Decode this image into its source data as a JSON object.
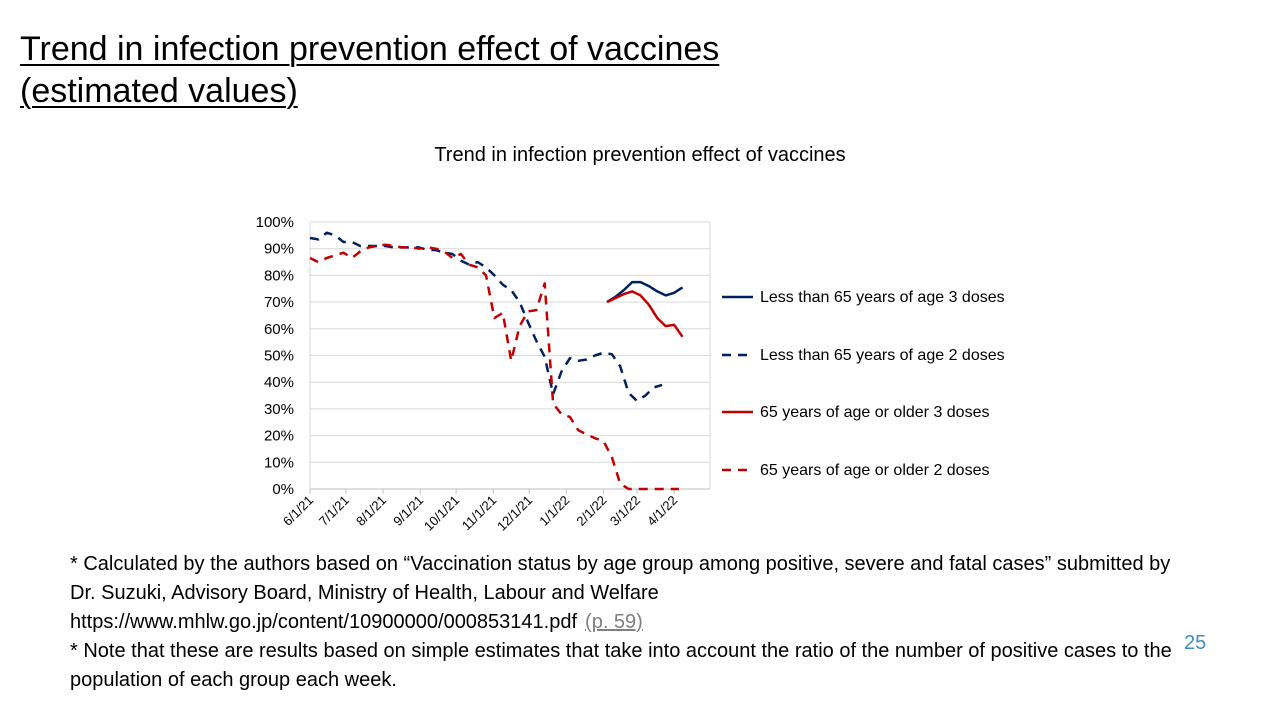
{
  "slide": {
    "title_line1": "Trend in infection prevention effect of vaccines",
    "title_line2": "(estimated values)",
    "page_number": "25"
  },
  "notes": {
    "line1": "* Calculated by the authors based on “Vaccination status by age group among positive, severe and fatal cases” submitted by Dr. Suzuki, Advisory Board, Ministry of Health, Labour and Welfare",
    "url": "https://www.mhlw.go.jp/content/10900000/000853141.pdf",
    "page_ref": "(p. 59)",
    "line2": "* Note that these are results based on simple estimates that take into account the ratio of the number of positive cases to the population of each group each week."
  },
  "chart_data": {
    "type": "line",
    "title": "Trend in infection prevention effect of vaccines",
    "xlabel": "",
    "ylabel": "",
    "ylim": [
      0,
      1
    ],
    "y_ticks": [
      "0%",
      "10%",
      "20%",
      "30%",
      "40%",
      "50%",
      "60%",
      "70%",
      "80%",
      "90%",
      "100%"
    ],
    "x_ticks": [
      "6/1/21",
      "7/1/21",
      "8/1/21",
      "9/1/21",
      "10/1/21",
      "11/1/21",
      "12/1/21",
      "1/1/22",
      "2/1/22",
      "3/1/22",
      "4/1/22"
    ],
    "grid": "horizontal",
    "legend_position": "right",
    "series": [
      {
        "name": "Less than 65 years of age 3 doses",
        "color": "#002060",
        "dash": "solid",
        "points": [
          [
            "2/4/22",
            0.7
          ],
          [
            "2/11/22",
            0.72
          ],
          [
            "2/18/22",
            0.745
          ],
          [
            "2/25/22",
            0.775
          ],
          [
            "3/4/22",
            0.775
          ],
          [
            "3/11/22",
            0.76
          ],
          [
            "3/18/22",
            0.74
          ],
          [
            "3/25/22",
            0.725
          ],
          [
            "4/1/22",
            0.735
          ],
          [
            "4/8/22",
            0.755
          ]
        ]
      },
      {
        "name": "Less than 65 years of age 2 doses",
        "color": "#002060",
        "dash": "dashed",
        "points": [
          [
            "6/1/21",
            0.94
          ],
          [
            "6/8/21",
            0.935
          ],
          [
            "6/15/21",
            0.96
          ],
          [
            "6/22/21",
            0.95
          ],
          [
            "6/29/21",
            0.925
          ],
          [
            "7/6/21",
            0.925
          ],
          [
            "7/13/21",
            0.91
          ],
          [
            "7/20/21",
            0.91
          ],
          [
            "7/27/21",
            0.91
          ],
          [
            "8/3/21",
            0.91
          ],
          [
            "8/10/21",
            0.905
          ],
          [
            "8/17/21",
            0.905
          ],
          [
            "8/24/21",
            0.905
          ],
          [
            "8/31/21",
            0.905
          ],
          [
            "9/7/21",
            0.895
          ],
          [
            "9/14/21",
            0.895
          ],
          [
            "9/21/21",
            0.885
          ],
          [
            "9/28/21",
            0.88
          ],
          [
            "10/5/21",
            0.855
          ],
          [
            "10/12/21",
            0.84
          ],
          [
            "10/19/21",
            0.85
          ],
          [
            "10/26/21",
            0.83
          ],
          [
            "11/2/21",
            0.8
          ],
          [
            "11/9/21",
            0.765
          ],
          [
            "11/16/21",
            0.745
          ],
          [
            "11/23/21",
            0.7
          ],
          [
            "11/30/21",
            0.625
          ],
          [
            "12/7/21",
            0.555
          ],
          [
            "12/14/21",
            0.495
          ],
          [
            "12/21/21",
            0.355
          ],
          [
            "12/28/21",
            0.44
          ],
          [
            "1/4/22",
            0.49
          ],
          [
            "1/11/22",
            0.48
          ],
          [
            "1/18/22",
            0.485
          ],
          [
            "1/25/22",
            0.5
          ],
          [
            "2/1/22",
            0.51
          ],
          [
            "2/8/22",
            0.505
          ],
          [
            "2/15/22",
            0.46
          ],
          [
            "2/22/22",
            0.36
          ],
          [
            "3/1/22",
            0.33
          ],
          [
            "3/8/22",
            0.35
          ],
          [
            "3/15/22",
            0.38
          ],
          [
            "3/22/22",
            0.39
          ]
        ]
      },
      {
        "name": "65 years of age or older 3 doses",
        "color": "#c00000",
        "dash": "solid",
        "points": [
          [
            "2/4/22",
            0.7
          ],
          [
            "2/11/22",
            0.715
          ],
          [
            "2/18/22",
            0.73
          ],
          [
            "2/25/22",
            0.74
          ],
          [
            "3/4/22",
            0.725
          ],
          [
            "3/11/22",
            0.69
          ],
          [
            "3/18/22",
            0.64
          ],
          [
            "3/25/22",
            0.61
          ],
          [
            "4/1/22",
            0.615
          ],
          [
            "4/8/22",
            0.57
          ]
        ]
      },
      {
        "name": "65 years of age or older 2 doses",
        "color": "#c00000",
        "dash": "dashed",
        "points": [
          [
            "6/1/21",
            0.865
          ],
          [
            "6/8/21",
            0.85
          ],
          [
            "6/15/21",
            0.865
          ],
          [
            "6/22/21",
            0.875
          ],
          [
            "6/29/21",
            0.885
          ],
          [
            "7/6/21",
            0.865
          ],
          [
            "7/13/21",
            0.89
          ],
          [
            "7/20/21",
            0.905
          ],
          [
            "7/27/21",
            0.91
          ],
          [
            "8/3/21",
            0.915
          ],
          [
            "8/10/21",
            0.91
          ],
          [
            "8/17/21",
            0.905
          ],
          [
            "8/24/21",
            0.905
          ],
          [
            "8/31/21",
            0.9
          ],
          [
            "9/7/21",
            0.905
          ],
          [
            "9/14/21",
            0.9
          ],
          [
            "9/21/21",
            0.89
          ],
          [
            "9/28/21",
            0.865
          ],
          [
            "10/5/21",
            0.88
          ],
          [
            "10/12/21",
            0.84
          ],
          [
            "10/19/21",
            0.83
          ],
          [
            "10/26/21",
            0.8
          ],
          [
            "11/2/21",
            0.64
          ],
          [
            "11/9/21",
            0.66
          ],
          [
            "11/16/21",
            0.48
          ],
          [
            "11/23/21",
            0.61
          ],
          [
            "11/30/21",
            0.665
          ],
          [
            "12/7/21",
            0.67
          ],
          [
            "12/14/21",
            0.77
          ],
          [
            "12/21/21",
            0.32
          ],
          [
            "12/28/21",
            0.28
          ],
          [
            "1/4/22",
            0.27
          ],
          [
            "1/11/22",
            0.22
          ],
          [
            "1/18/22",
            0.205
          ],
          [
            "1/25/22",
            0.19
          ],
          [
            "2/1/22",
            0.18
          ],
          [
            "2/8/22",
            0.12
          ],
          [
            "2/15/22",
            0.02
          ],
          [
            "2/22/22",
            0.0
          ],
          [
            "3/1/22",
            0.0
          ],
          [
            "3/8/22",
            0.0
          ],
          [
            "3/15/22",
            0.0
          ],
          [
            "3/22/22",
            0.0
          ],
          [
            "3/29/22",
            0.0
          ],
          [
            "4/5/22",
            0.0
          ]
        ]
      }
    ]
  }
}
